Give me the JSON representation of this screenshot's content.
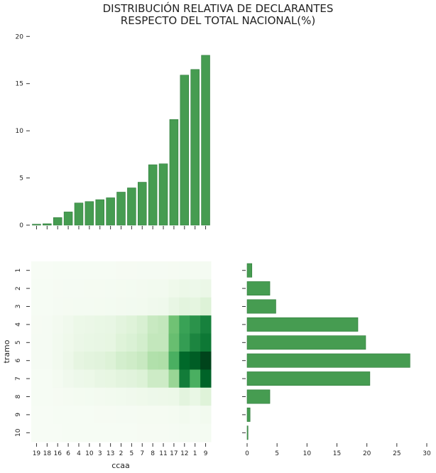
{
  "title_lines": [
    "DISTRIBUCIÓN RELATIVA DE DECLARANTES",
    "RESPECTO DEL TOTAL NACIONAL(%)"
  ],
  "colors": {
    "bar_fill": "#469c51",
    "bar_edge": "#2f7a3b",
    "heat_low": "#f7fcf5",
    "heat_high": "#00441b"
  },
  "chart_data": [
    {
      "type": "bar",
      "panel": "top",
      "categories": [
        "19",
        "18",
        "16",
        "6",
        "4",
        "10",
        "3",
        "13",
        "2",
        "5",
        "7",
        "8",
        "11",
        "17",
        "12",
        "1",
        "9"
      ],
      "values": [
        0.1,
        0.15,
        0.8,
        1.4,
        2.35,
        2.5,
        2.7,
        2.9,
        3.5,
        3.95,
        4.55,
        6.4,
        6.5,
        11.2,
        15.9,
        16.5,
        18.0
      ],
      "ylim": [
        0,
        21
      ],
      "yticks": [
        0,
        5,
        10,
        15,
        20
      ]
    },
    {
      "type": "heatmap",
      "panel": "bottom-left",
      "xlabel": "ccaa",
      "ylabel": "tramo",
      "x_categories": [
        "19",
        "18",
        "16",
        "6",
        "4",
        "10",
        "3",
        "13",
        "2",
        "5",
        "7",
        "8",
        "11",
        "17",
        "12",
        "1",
        "9"
      ],
      "y_categories": [
        "1",
        "2",
        "3",
        "4",
        "5",
        "6",
        "7",
        "8",
        "9",
        "10"
      ],
      "values": [
        [
          0.01,
          0.01,
          0.02,
          0.03,
          0.04,
          0.04,
          0.04,
          0.04,
          0.05,
          0.05,
          0.06,
          0.07,
          0.07,
          0.08,
          0.1,
          0.09,
          0.1
        ],
        [
          0.02,
          0.02,
          0.05,
          0.06,
          0.07,
          0.08,
          0.09,
          0.1,
          0.12,
          0.13,
          0.15,
          0.18,
          0.18,
          0.3,
          0.4,
          0.35,
          0.45
        ],
        [
          0.02,
          0.02,
          0.06,
          0.08,
          0.1,
          0.11,
          0.12,
          0.13,
          0.15,
          0.17,
          0.2,
          0.25,
          0.28,
          0.55,
          0.7,
          0.65,
          0.85
        ],
        [
          0.05,
          0.06,
          0.15,
          0.25,
          0.4,
          0.45,
          0.5,
          0.55,
          0.7,
          0.8,
          0.95,
          1.3,
          1.4,
          2.7,
          3.5,
          3.8,
          4.2
        ],
        [
          0.06,
          0.06,
          0.18,
          0.3,
          0.45,
          0.5,
          0.55,
          0.6,
          0.8,
          0.9,
          1.05,
          1.4,
          1.4,
          2.8,
          3.6,
          4.1,
          4.4
        ],
        [
          0.06,
          0.07,
          0.2,
          0.38,
          0.62,
          0.7,
          0.75,
          0.85,
          1.05,
          1.15,
          1.3,
          1.7,
          1.75,
          3.2,
          4.7,
          4.9,
          5.3
        ],
        [
          0.03,
          0.04,
          0.12,
          0.25,
          0.35,
          0.4,
          0.55,
          0.6,
          0.7,
          0.75,
          0.85,
          1.2,
          1.2,
          2.1,
          4.3,
          3.2,
          4.8
        ],
        [
          0.02,
          0.02,
          0.05,
          0.08,
          0.12,
          0.14,
          0.16,
          0.18,
          0.22,
          0.25,
          0.3,
          0.36,
          0.37,
          0.4,
          0.7,
          0.5,
          0.8
        ],
        [
          0.01,
          0.01,
          0.02,
          0.03,
          0.04,
          0.04,
          0.05,
          0.05,
          0.06,
          0.07,
          0.08,
          0.09,
          0.09,
          0.12,
          0.2,
          0.1,
          0.2
        ],
        [
          0.01,
          0.01,
          0.01,
          0.02,
          0.02,
          0.02,
          0.03,
          0.03,
          0.04,
          0.04,
          0.05,
          0.05,
          0.05,
          0.07,
          0.1,
          0.06,
          0.1
        ]
      ],
      "vmax": 5.3
    },
    {
      "type": "bar",
      "orientation": "horizontal",
      "panel": "bottom-right",
      "categories": [
        "1",
        "2",
        "3",
        "4",
        "5",
        "6",
        "7",
        "8",
        "9",
        "10"
      ],
      "values": [
        0.8,
        3.8,
        4.8,
        18.5,
        19.8,
        27.2,
        20.5,
        3.8,
        0.5,
        0.15
      ],
      "xlim": [
        0,
        30
      ],
      "xticks": [
        0,
        5,
        10,
        15,
        20,
        25,
        30
      ]
    }
  ]
}
